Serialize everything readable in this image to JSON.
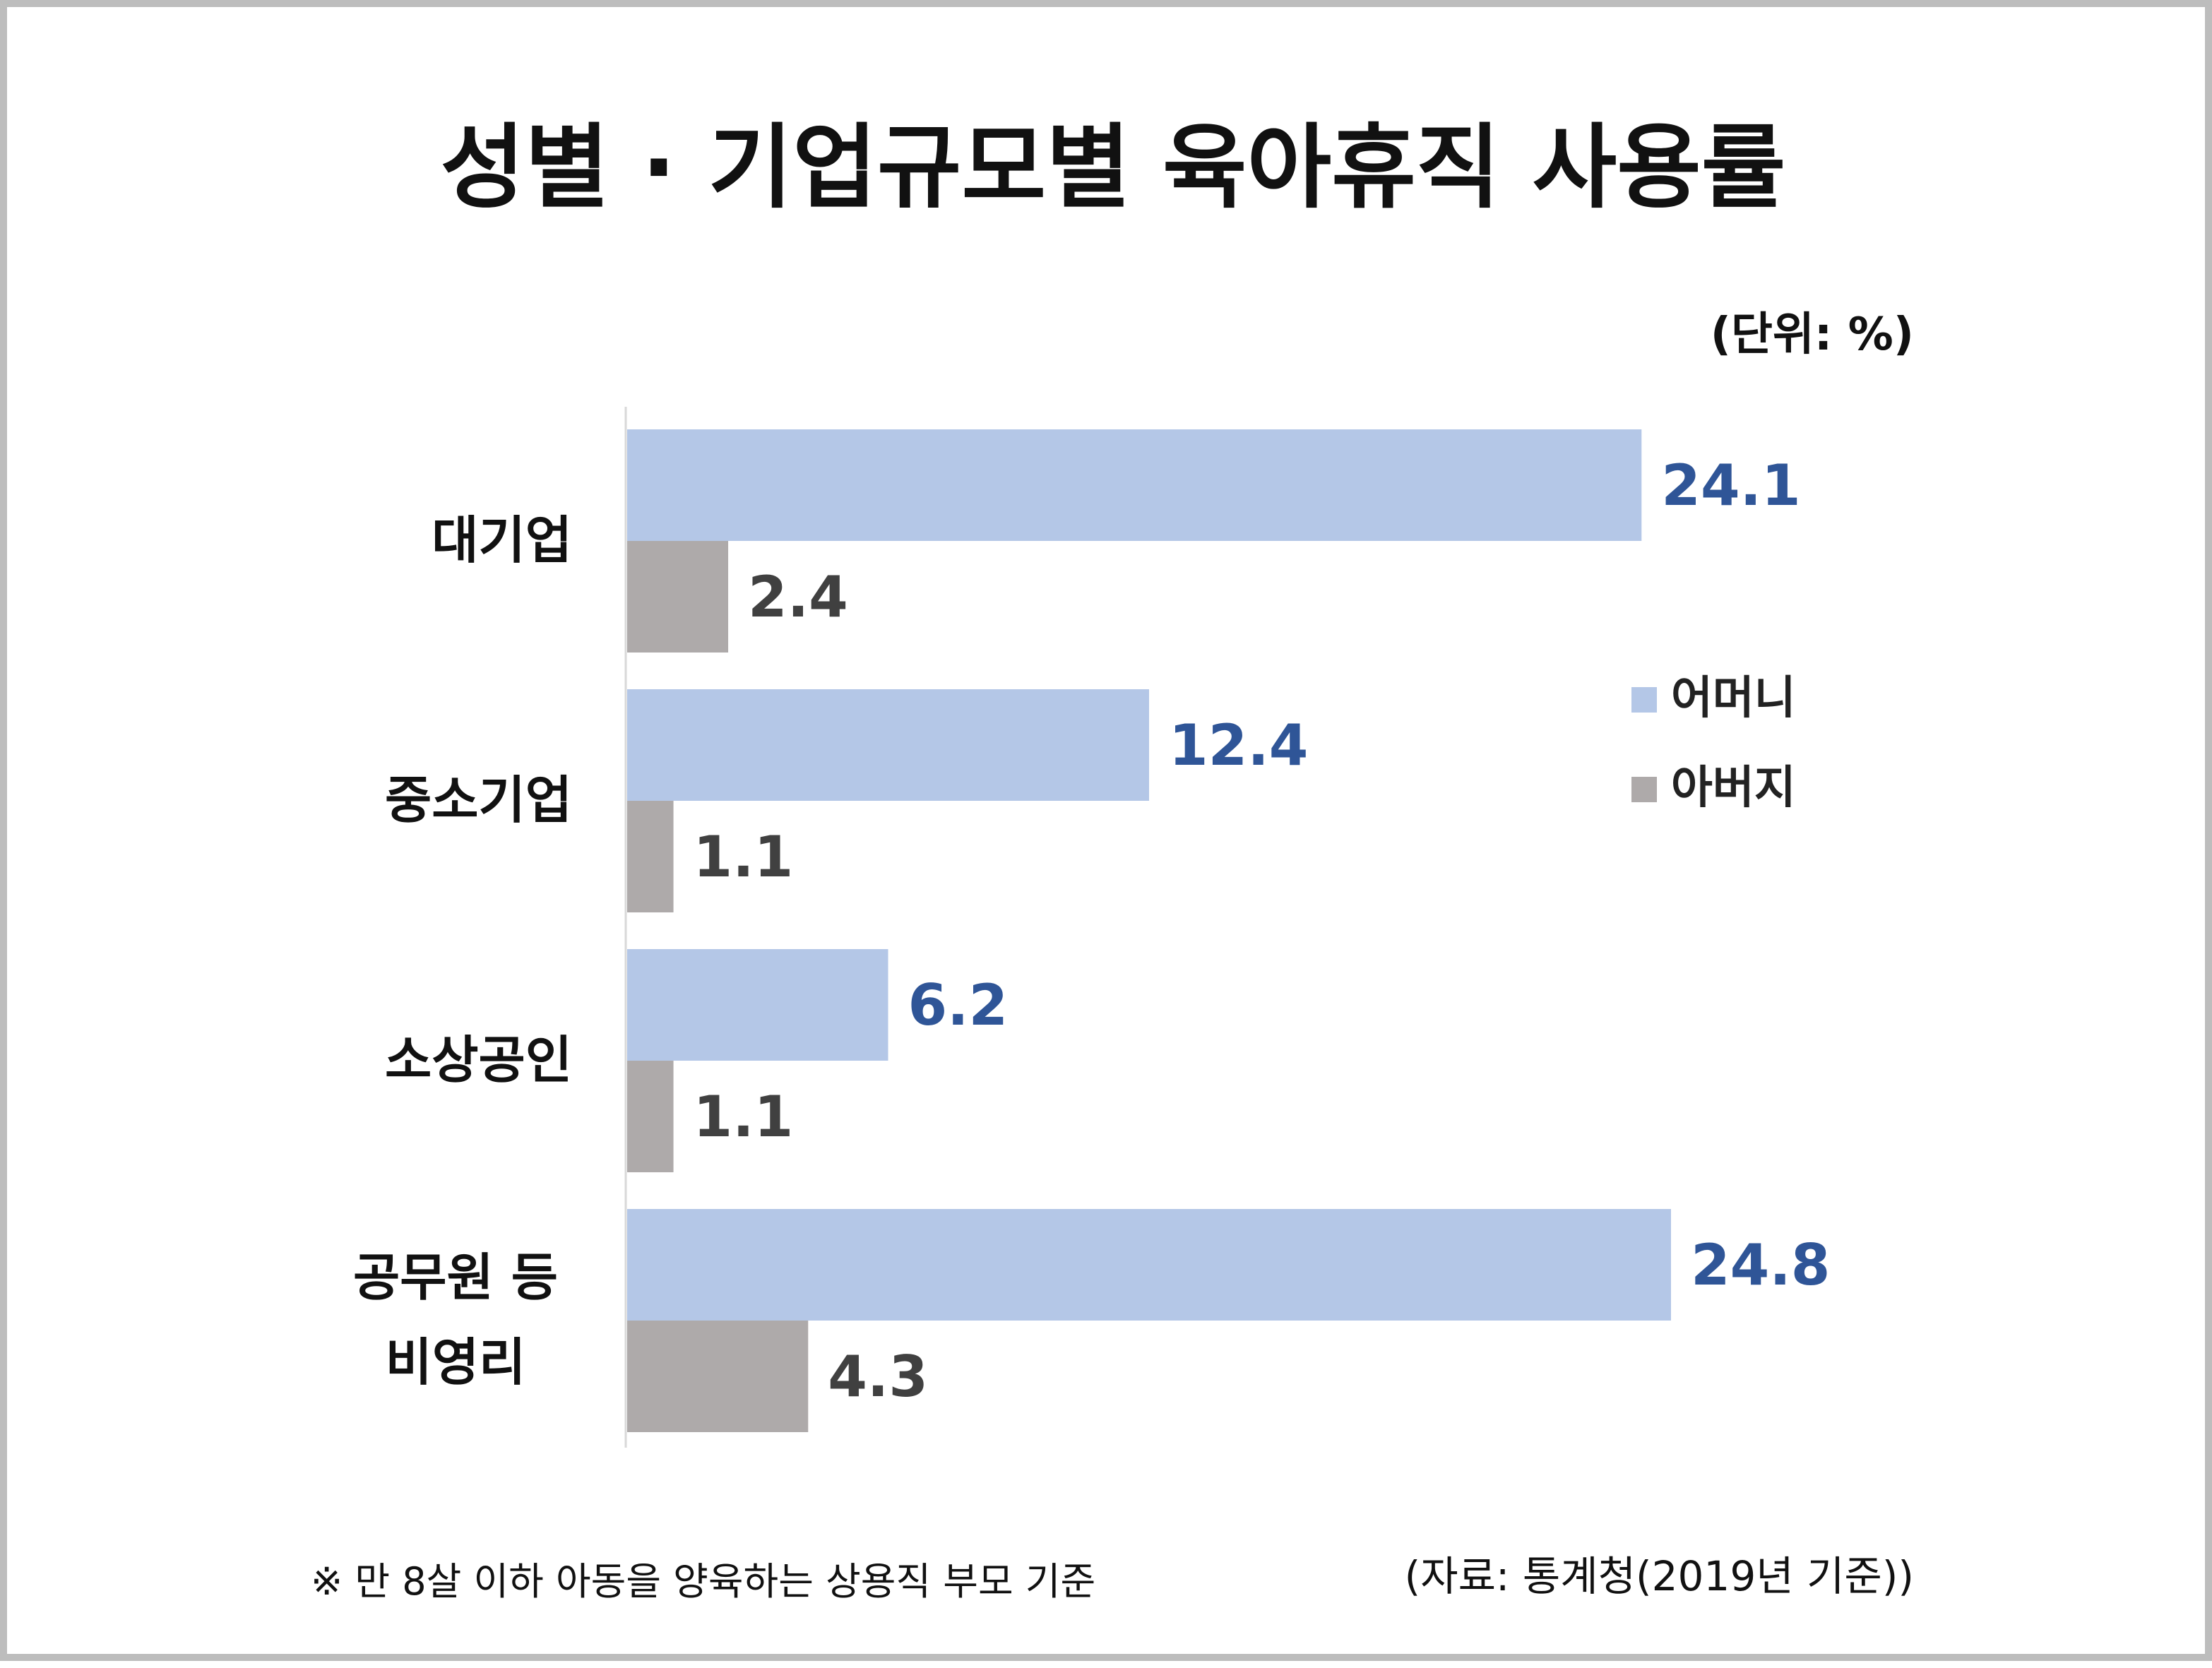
{
  "colors": {
    "mother": "#b4c7e7",
    "father": "#aeaaaa",
    "mother_label": "#2f5597",
    "father_label": "#404040",
    "border": "#bdbdbd",
    "axis": "#d9d9d9"
  },
  "footnote": "※ 만 8살 이하 아동을 양육하는 상용직 부모 기준",
  "source": "(자료: 통계청(2019년 기준))",
  "chart_data": {
    "type": "bar",
    "orientation": "horizontal",
    "title": "성별 · 기업규모별 육아휴직 사용률",
    "unit_note": "(단위: %)",
    "categories": [
      [
        "대기업"
      ],
      [
        "중소기업"
      ],
      [
        "소상공인"
      ],
      [
        "공무원 등",
        "비영리"
      ]
    ],
    "series": [
      {
        "name": "어머니",
        "values": [
          24.1,
          12.4,
          6.2,
          24.8
        ]
      },
      {
        "name": "아버지",
        "values": [
          2.4,
          1.1,
          1.1,
          4.3
        ]
      }
    ],
    "xlim": [
      0,
      24.8
    ],
    "grid": false,
    "legend": "right"
  }
}
